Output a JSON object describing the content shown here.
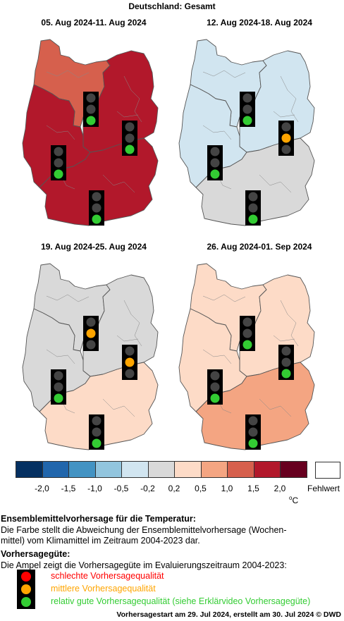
{
  "title": "Deutschland: Gesamt",
  "weeks": [
    {
      "label": "05. Aug 2024-11. Aug 2024",
      "regions": {
        "north": "#d6604d",
        "east": "#b2182b",
        "west": "#b2182b",
        "south": "#b2182b"
      },
      "quality": {
        "north": "good",
        "east": "good",
        "west": "good",
        "south": "good"
      }
    },
    {
      "label": "12. Aug 2024-18. Aug 2024",
      "regions": {
        "north": "#d1e5f0",
        "east": "#d1e5f0",
        "west": "#d1e5f0",
        "south": "#d9d9d9"
      },
      "quality": {
        "north": "good",
        "east": "medium",
        "west": "good",
        "south": "good"
      }
    },
    {
      "label": "19. Aug 2024-25. Aug 2024",
      "regions": {
        "north": "#d9d9d9",
        "east": "#d9d9d9",
        "west": "#d9d9d9",
        "south": "#fddbc7"
      },
      "quality": {
        "north": "medium",
        "east": "medium",
        "west": "good",
        "south": "good"
      }
    },
    {
      "label": "26. Aug 2024-01. Sep 2024",
      "regions": {
        "north": "#fddbc7",
        "east": "#fddbc7",
        "west": "#fddbc7",
        "south": "#f4a582"
      },
      "quality": {
        "north": "good",
        "east": "good",
        "west": "good",
        "south": "good"
      }
    }
  ],
  "colorbar": {
    "colors": [
      "#053061",
      "#2166ac",
      "#4393c3",
      "#92c5de",
      "#d1e5f0",
      "#d9d9d9",
      "#fddbc7",
      "#f4a582",
      "#d6604d",
      "#b2182b",
      "#67001f"
    ],
    "ticks": [
      "-2,0",
      "-1,5",
      "-1,0",
      "-0,5",
      "-0,2",
      "0,2",
      "0,5",
      "1,0",
      "1,5",
      "2,0"
    ],
    "missing_label": "Fehlwert",
    "unit_symbol": "o",
    "unit_letter": "C"
  },
  "legend": {
    "ensemble_heading": "Ensemblemittelvorhersage für die Temperatur:",
    "ensemble_line1": "Die Farbe stellt die Abweichung der Ensemblemittelvorhersage (Wochen-",
    "ensemble_line2": "mittel) vom Klimamittel im Zeitraum 2004-2023 dar.",
    "quality_heading": "Vorhersagegüte:",
    "quality_text": "Die Ampel zeigt die Vorhersagegüte im Evaluierungszeitraum 2004-2023:",
    "bad": "schlechte Vorhersagequalität",
    "medium": "mittlere Vorhersagequalität",
    "good": "relativ gute Vorhersagequalität (siehe Erklärvideo Vorhersagegüte)",
    "bad_color": "#ff0000",
    "medium_color": "#ffa500",
    "good_color": "#33cc33"
  },
  "footer": "Vorhersagestart am 29. Jul 2024, erstellt am 30. Jul 2024 © DWD"
}
